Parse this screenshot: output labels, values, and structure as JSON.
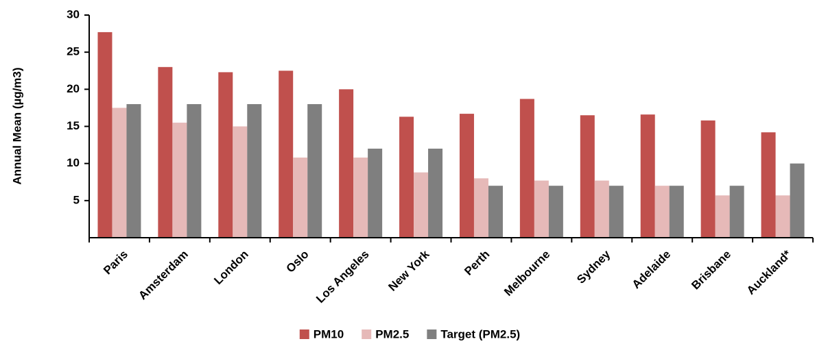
{
  "chart_data": {
    "type": "bar",
    "categories": [
      "Paris",
      "Amsterdam",
      "London",
      "Oslo",
      "Los Angeles",
      "New York",
      "Perth",
      "Melbourne",
      "Sydney",
      "Adelaide",
      "Brisbane",
      "Auckland*"
    ],
    "series": [
      {
        "name": "PM10",
        "color": "#c0504d",
        "values": [
          27.7,
          23,
          22.3,
          22.5,
          20,
          16.3,
          16.7,
          18.7,
          16.5,
          16.6,
          15.8,
          14.2
        ]
      },
      {
        "name": "PM2.5",
        "color": "#e6b9b8",
        "values": [
          17.5,
          15.5,
          15,
          10.8,
          10.8,
          8.8,
          8,
          7.7,
          7.7,
          7,
          5.7,
          5.7
        ]
      },
      {
        "name": "Target (PM2.5)",
        "color": "#7f7f7f",
        "values": [
          18,
          18,
          18,
          18,
          12,
          12,
          7,
          7,
          7,
          7,
          7,
          10
        ]
      }
    ],
    "y_label": "Annual Mean (µg/m3)",
    "ylim": [
      0,
      30
    ],
    "yticks": [
      5,
      10,
      15,
      20,
      25,
      30
    ],
    "grid": false,
    "legend": "bottom"
  }
}
